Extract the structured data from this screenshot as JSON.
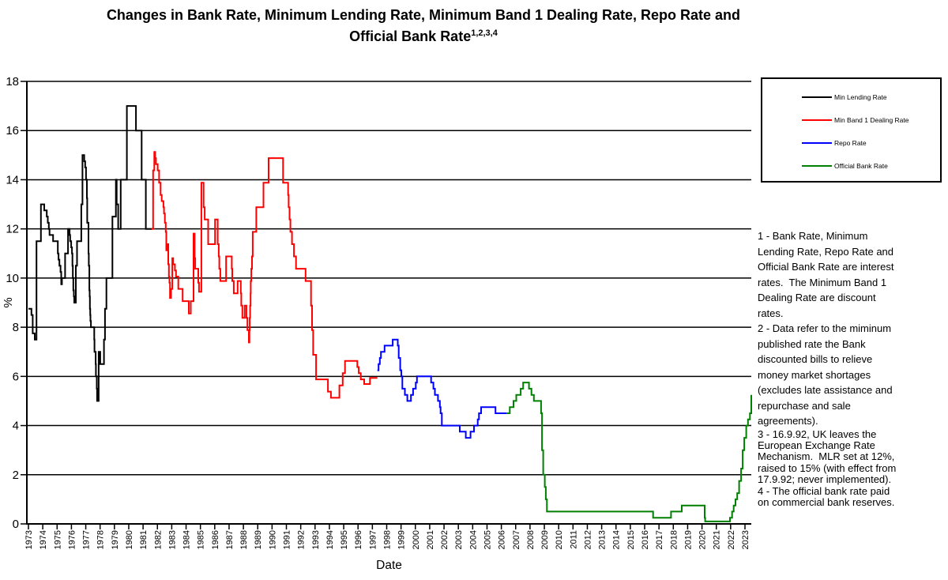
{
  "title": {
    "line1": "Changes in Bank Rate, Minimum Lending Rate, Minimum Band 1 Dealing Rate, Repo Rate and",
    "line2": "Official Bank Rate",
    "superscript": "1,2,3,4"
  },
  "legend": {
    "items": [
      {
        "label": "Min Lending Rate",
        "color": "#000000"
      },
      {
        "label": "Min Band 1 Dealing Rate",
        "color": "#ff0000"
      },
      {
        "label": "Repo Rate",
        "color": "#0000ff"
      },
      {
        "label": "Official Bank Rate",
        "color": "#008000"
      }
    ]
  },
  "notes": [
    "1 - Bank Rate, Minimum\nLending Rate, Repo Rate and\nOfficial Bank Rate are interest\nrates.  The Minimum Band 1\nDealing Rate are discount\nrates.",
    "2 - Data refer to the miminum\npublished rate the Bank\ndiscounted bills to relieve\nmoney market shortages\n(excludes late assistance and\nrepurchase and sale\nagreements).",
    "3 - 16.9.92, UK leaves the\nEuropean Exchange Rate\nMechanism.  MLR set at 12%,\nraised to 15% (with effect from\n17.9.92; never implemented).",
    "4 - The official bank rate paid\non commercial bank reserves."
  ],
  "chart_data": {
    "type": "line",
    "step": true,
    "title": "Changes in Bank Rate, Minimum Lending Rate, Minimum Band 1 Dealing Rate, Repo Rate and Official Bank Rate",
    "xlabel": "Date",
    "ylabel": "%",
    "ylim": [
      0,
      18
    ],
    "ytick_step": 2,
    "grid": true,
    "legend_position": "right",
    "xticks": [
      1973,
      1974,
      1975,
      1976,
      1977,
      1978,
      1979,
      1980,
      1981,
      1982,
      1983,
      1984,
      1985,
      1986,
      1987,
      1988,
      1989,
      1990,
      1991,
      1992,
      1993,
      1994,
      1995,
      1996,
      1997,
      1998,
      1999,
      2000,
      2001,
      2002,
      2003,
      2004,
      2005,
      2006,
      2007,
      2008,
      2009,
      2010,
      2011,
      2012,
      2013,
      2014,
      2015,
      2016,
      2017,
      2018,
      2019,
      2020,
      2021,
      2022,
      2023
    ],
    "series": [
      {
        "name": "Min Lending Rate",
        "color": "#000000",
        "end": 1981.6,
        "points": [
          [
            1973.0,
            8.75
          ],
          [
            1973.21,
            8.5
          ],
          [
            1973.3,
            7.75
          ],
          [
            1973.44,
            7.5
          ],
          [
            1973.56,
            11.5
          ],
          [
            1973.87,
            13.0
          ],
          [
            1974.1,
            12.75
          ],
          [
            1974.28,
            12.5
          ],
          [
            1974.35,
            12.25
          ],
          [
            1974.42,
            12.0
          ],
          [
            1974.47,
            11.75
          ],
          [
            1974.72,
            11.5
          ],
          [
            1975.05,
            11.0
          ],
          [
            1975.1,
            10.75
          ],
          [
            1975.16,
            10.5
          ],
          [
            1975.24,
            10.25
          ],
          [
            1975.29,
            9.75
          ],
          [
            1975.34,
            10.0
          ],
          [
            1975.56,
            11.0
          ],
          [
            1975.76,
            12.0
          ],
          [
            1975.87,
            11.75
          ],
          [
            1975.91,
            11.5
          ],
          [
            1975.98,
            11.25
          ],
          [
            1976.04,
            11.0
          ],
          [
            1976.07,
            10.5
          ],
          [
            1976.1,
            10.0
          ],
          [
            1976.13,
            9.5
          ],
          [
            1976.17,
            9.25
          ],
          [
            1976.2,
            9.0
          ],
          [
            1976.31,
            10.5
          ],
          [
            1976.39,
            11.5
          ],
          [
            1976.69,
            13.0
          ],
          [
            1976.77,
            15.0
          ],
          [
            1976.89,
            14.75
          ],
          [
            1976.96,
            14.5
          ],
          [
            1977.02,
            14.0
          ],
          [
            1977.08,
            13.25
          ],
          [
            1977.1,
            12.25
          ],
          [
            1977.19,
            11.0
          ],
          [
            1977.21,
            10.5
          ],
          [
            1977.25,
            9.5
          ],
          [
            1977.27,
            9.25
          ],
          [
            1977.29,
            8.75
          ],
          [
            1977.31,
            8.5
          ],
          [
            1977.33,
            8.25
          ],
          [
            1977.36,
            8.0
          ],
          [
            1977.59,
            7.5
          ],
          [
            1977.61,
            7.0
          ],
          [
            1977.69,
            6.5
          ],
          [
            1977.71,
            6.0
          ],
          [
            1977.77,
            5.5
          ],
          [
            1977.79,
            5.0
          ],
          [
            1977.9,
            7.0
          ],
          [
            1978.01,
            6.5
          ],
          [
            1978.27,
            7.5
          ],
          [
            1978.34,
            8.75
          ],
          [
            1978.44,
            10.0
          ],
          [
            1978.86,
            12.5
          ],
          [
            1979.1,
            14.0
          ],
          [
            1979.16,
            13.0
          ],
          [
            1979.26,
            12.0
          ],
          [
            1979.44,
            14.0
          ],
          [
            1979.87,
            17.0
          ],
          [
            1980.5,
            16.0
          ],
          [
            1980.9,
            14.0
          ],
          [
            1981.19,
            12.0
          ]
        ]
      },
      {
        "name": "Min Band 1 Dealing Rate",
        "color": "#ff0000",
        "end": 1997.35,
        "points": [
          [
            1981.6,
            12.0
          ],
          [
            1981.7,
            14.38
          ],
          [
            1981.78,
            15.13
          ],
          [
            1981.84,
            14.88
          ],
          [
            1981.9,
            14.63
          ],
          [
            1982.02,
            14.38
          ],
          [
            1982.12,
            13.88
          ],
          [
            1982.22,
            13.38
          ],
          [
            1982.3,
            13.13
          ],
          [
            1982.42,
            12.88
          ],
          [
            1982.46,
            12.63
          ],
          [
            1982.52,
            12.25
          ],
          [
            1982.58,
            11.88
          ],
          [
            1982.62,
            11.13
          ],
          [
            1982.67,
            11.38
          ],
          [
            1982.76,
            10.56
          ],
          [
            1982.8,
            10.06
          ],
          [
            1982.84,
            9.81
          ],
          [
            1982.88,
            9.19
          ],
          [
            1982.95,
            9.56
          ],
          [
            1983.04,
            10.81
          ],
          [
            1983.1,
            10.56
          ],
          [
            1983.22,
            10.31
          ],
          [
            1983.3,
            10.06
          ],
          [
            1983.46,
            9.56
          ],
          [
            1983.76,
            9.06
          ],
          [
            1984.19,
            8.56
          ],
          [
            1984.33,
            9.06
          ],
          [
            1984.52,
            11.81
          ],
          [
            1984.6,
            10.81
          ],
          [
            1984.64,
            10.38
          ],
          [
            1984.85,
            9.81
          ],
          [
            1984.9,
            9.44
          ],
          [
            1985.07,
            13.88
          ],
          [
            1985.22,
            12.88
          ],
          [
            1985.3,
            12.38
          ],
          [
            1985.54,
            11.38
          ],
          [
            1986.02,
            12.38
          ],
          [
            1986.21,
            11.38
          ],
          [
            1986.28,
            10.88
          ],
          [
            1986.32,
            10.38
          ],
          [
            1986.39,
            9.88
          ],
          [
            1986.79,
            10.88
          ],
          [
            1987.19,
            10.38
          ],
          [
            1987.22,
            9.88
          ],
          [
            1987.33,
            9.38
          ],
          [
            1987.6,
            9.88
          ],
          [
            1987.82,
            9.38
          ],
          [
            1987.85,
            8.88
          ],
          [
            1987.93,
            8.38
          ],
          [
            1988.09,
            8.88
          ],
          [
            1988.21,
            8.38
          ],
          [
            1988.28,
            7.88
          ],
          [
            1988.38,
            7.38
          ],
          [
            1988.42,
            7.88
          ],
          [
            1988.44,
            8.38
          ],
          [
            1988.47,
            8.88
          ],
          [
            1988.5,
            9.38
          ],
          [
            1988.51,
            9.88
          ],
          [
            1988.55,
            10.38
          ],
          [
            1988.6,
            10.88
          ],
          [
            1988.65,
            11.88
          ],
          [
            1988.9,
            12.88
          ],
          [
            1989.4,
            13.88
          ],
          [
            1989.76,
            14.88
          ],
          [
            1990.77,
            13.88
          ],
          [
            1991.12,
            13.38
          ],
          [
            1991.16,
            12.88
          ],
          [
            1991.22,
            12.38
          ],
          [
            1991.28,
            11.88
          ],
          [
            1991.39,
            11.38
          ],
          [
            1991.53,
            10.88
          ],
          [
            1991.67,
            10.38
          ],
          [
            1992.34,
            9.88
          ],
          [
            1992.72,
            8.88
          ],
          [
            1992.79,
            7.88
          ],
          [
            1992.87,
            6.88
          ],
          [
            1993.07,
            5.88
          ],
          [
            1993.9,
            5.38
          ],
          [
            1994.11,
            5.13
          ],
          [
            1994.7,
            5.63
          ],
          [
            1994.93,
            6.13
          ],
          [
            1995.09,
            6.63
          ],
          [
            1995.95,
            6.38
          ],
          [
            1996.05,
            6.13
          ],
          [
            1996.19,
            5.88
          ],
          [
            1996.43,
            5.69
          ],
          [
            1996.83,
            5.94
          ]
        ]
      },
      {
        "name": "Repo Rate",
        "color": "#0000ff",
        "end": 2006.35,
        "points": [
          [
            1997.35,
            6.25
          ],
          [
            1997.43,
            6.5
          ],
          [
            1997.52,
            6.75
          ],
          [
            1997.6,
            7.0
          ],
          [
            1997.85,
            7.25
          ],
          [
            1998.42,
            7.5
          ],
          [
            1998.77,
            7.25
          ],
          [
            1998.84,
            6.75
          ],
          [
            1998.94,
            6.25
          ],
          [
            1999.02,
            6.0
          ],
          [
            1999.09,
            5.5
          ],
          [
            1999.27,
            5.25
          ],
          [
            1999.44,
            5.0
          ],
          [
            1999.69,
            5.25
          ],
          [
            1999.84,
            5.5
          ],
          [
            2000.03,
            5.75
          ],
          [
            2000.11,
            6.0
          ],
          [
            2001.1,
            5.75
          ],
          [
            2001.26,
            5.5
          ],
          [
            2001.36,
            5.25
          ],
          [
            2001.58,
            5.0
          ],
          [
            2001.71,
            4.75
          ],
          [
            2001.76,
            4.5
          ],
          [
            2001.85,
            4.0
          ],
          [
            2003.1,
            3.75
          ],
          [
            2003.52,
            3.5
          ],
          [
            2003.85,
            3.75
          ],
          [
            2004.09,
            4.0
          ],
          [
            2004.35,
            4.25
          ],
          [
            2004.44,
            4.5
          ],
          [
            2004.59,
            4.75
          ],
          [
            2005.59,
            4.5
          ]
        ]
      },
      {
        "name": "Official Bank Rate",
        "color": "#008000",
        "end": 2023.62,
        "points": [
          [
            2006.35,
            4.5
          ],
          [
            2006.59,
            4.75
          ],
          [
            2006.85,
            5.0
          ],
          [
            2007.04,
            5.25
          ],
          [
            2007.35,
            5.5
          ],
          [
            2007.52,
            5.75
          ],
          [
            2007.93,
            5.5
          ],
          [
            2008.1,
            5.25
          ],
          [
            2008.27,
            5.0
          ],
          [
            2008.77,
            4.5
          ],
          [
            2008.84,
            3.0
          ],
          [
            2008.92,
            2.0
          ],
          [
            2009.03,
            1.5
          ],
          [
            2009.1,
            1.0
          ],
          [
            2009.18,
            0.5
          ],
          [
            2016.59,
            0.25
          ],
          [
            2017.84,
            0.5
          ],
          [
            2018.59,
            0.75
          ],
          [
            2020.19,
            0.25
          ],
          [
            2020.22,
            0.1
          ],
          [
            2021.95,
            0.25
          ],
          [
            2022.1,
            0.5
          ],
          [
            2022.21,
            0.75
          ],
          [
            2022.34,
            1.0
          ],
          [
            2022.46,
            1.25
          ],
          [
            2022.59,
            1.75
          ],
          [
            2022.73,
            2.25
          ],
          [
            2022.84,
            3.0
          ],
          [
            2022.95,
            3.5
          ],
          [
            2023.09,
            4.0
          ],
          [
            2023.21,
            4.25
          ],
          [
            2023.35,
            4.5
          ],
          [
            2023.45,
            5.0
          ],
          [
            2023.55,
            5.25
          ]
        ]
      }
    ]
  }
}
